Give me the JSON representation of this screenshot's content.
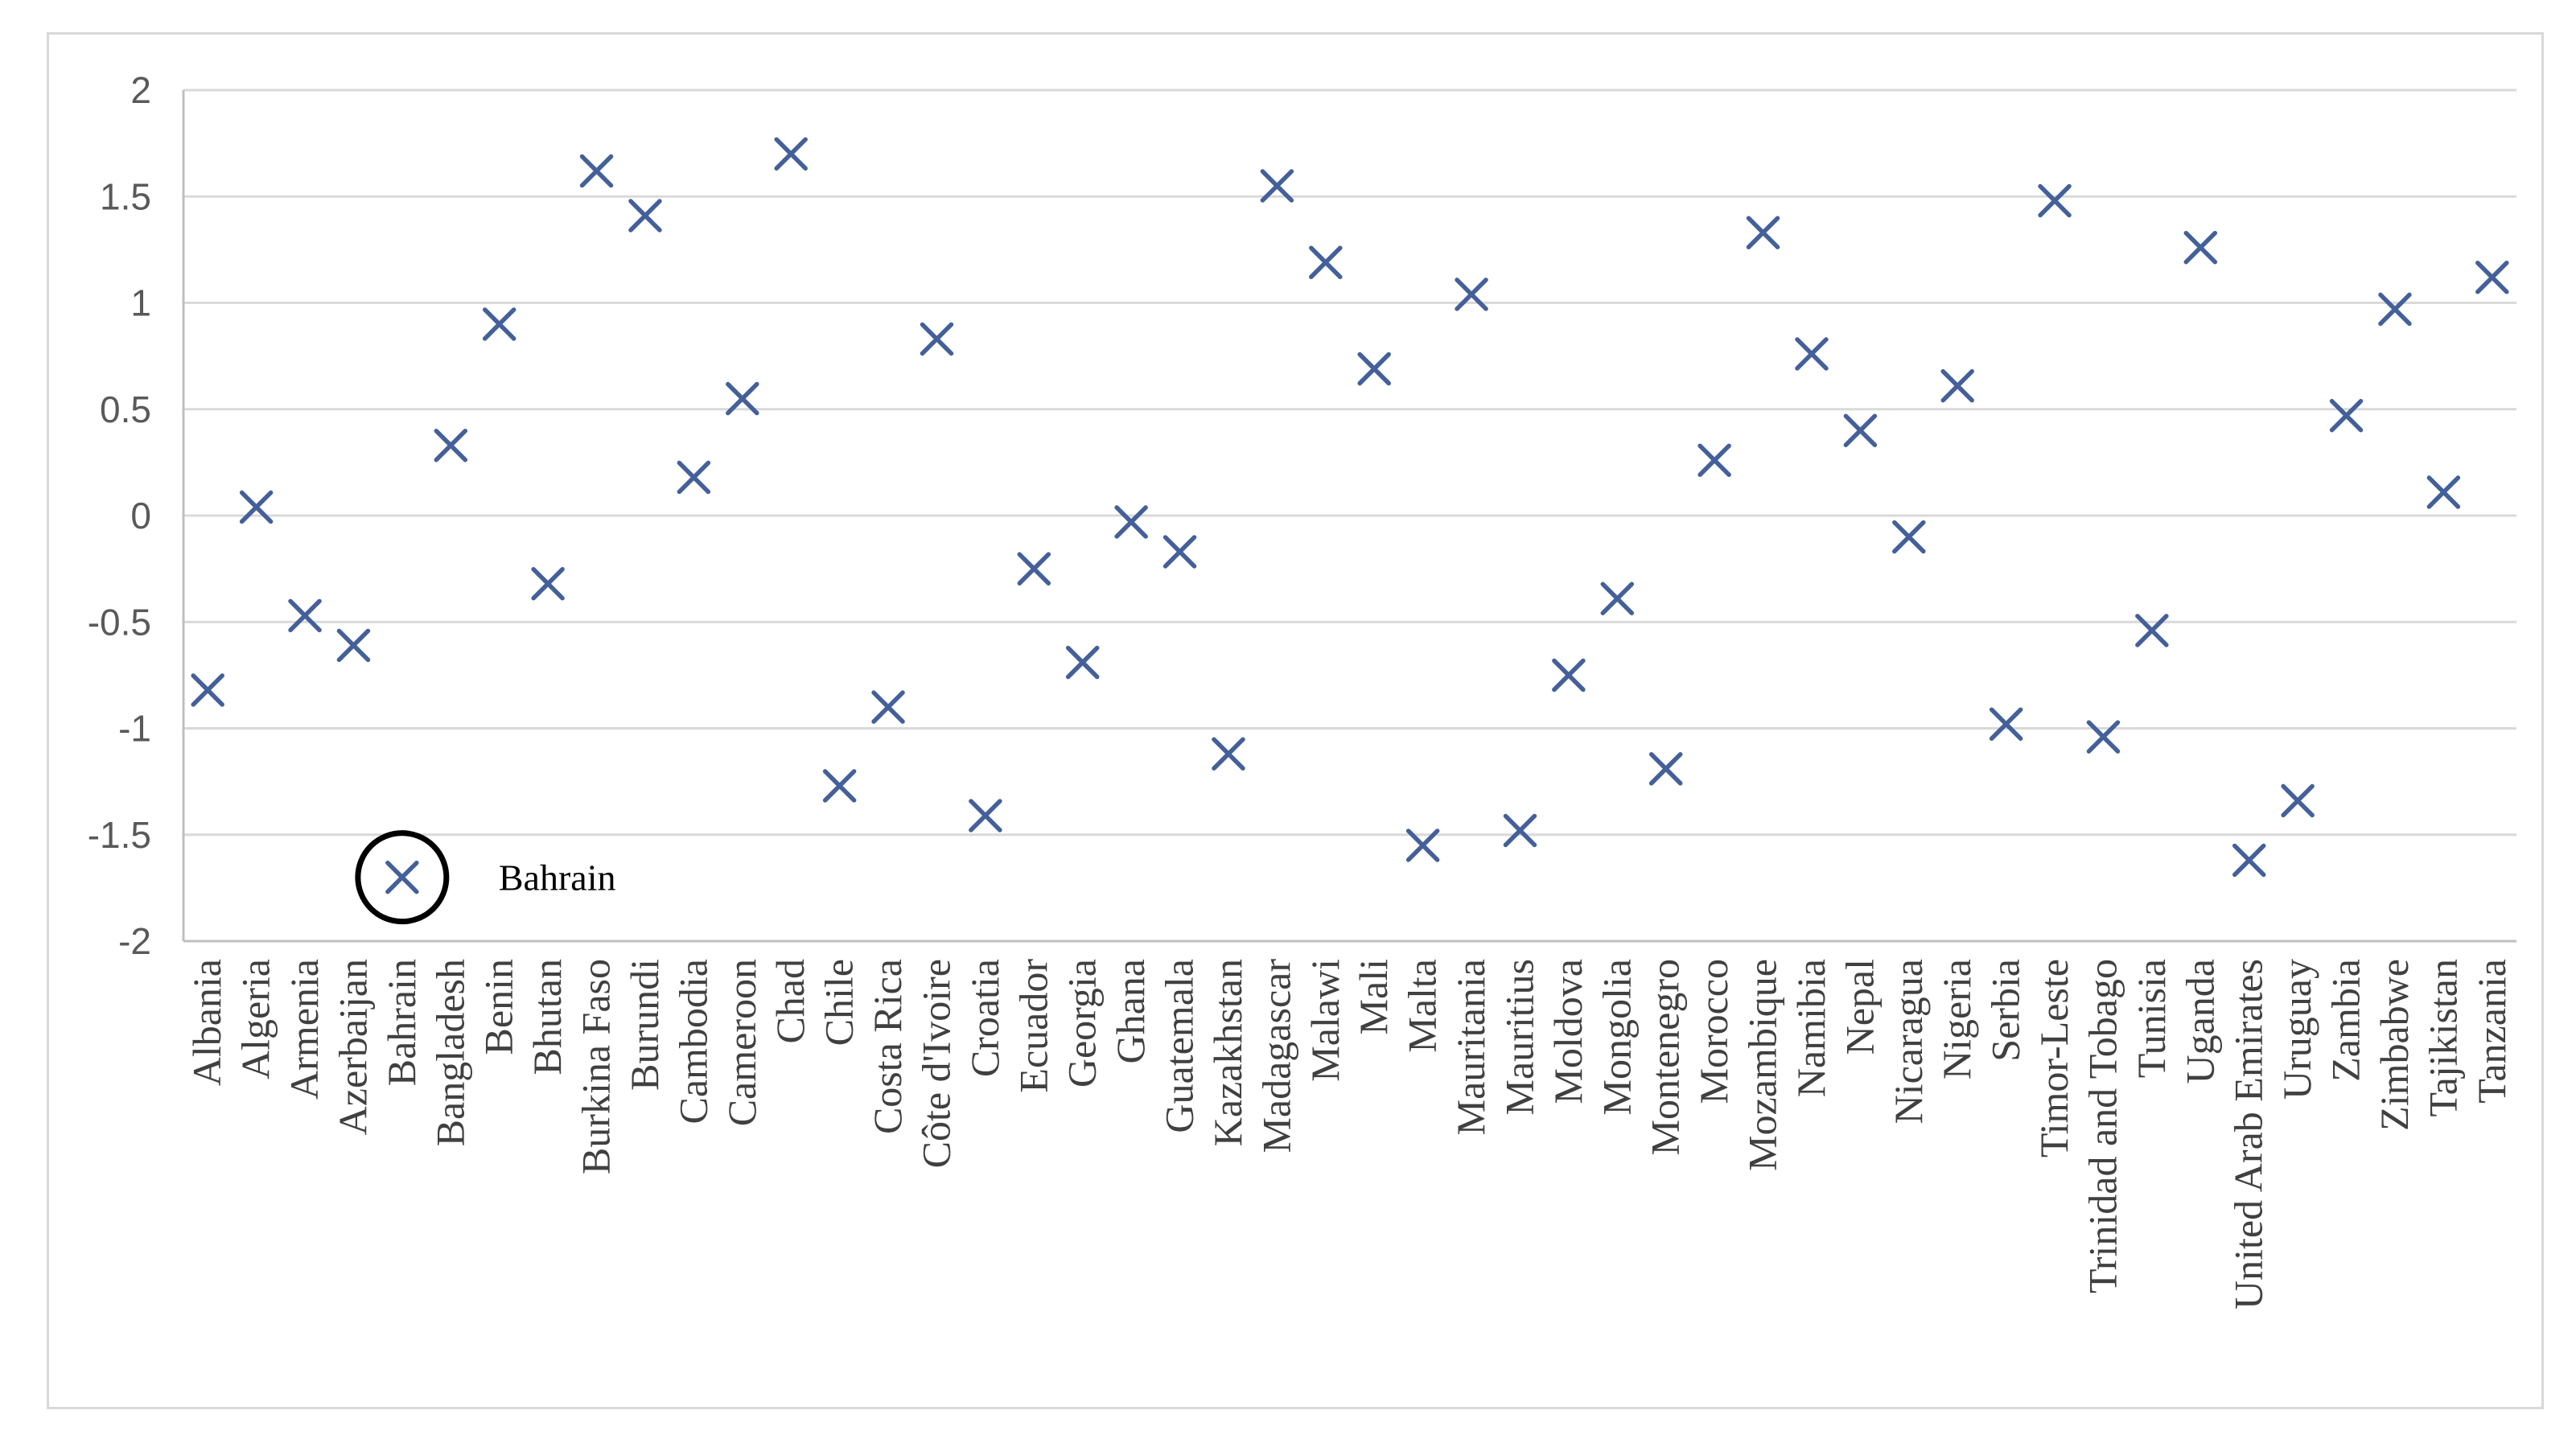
{
  "chart_data": {
    "type": "scatter",
    "title": "",
    "xlabel": "",
    "ylabel": "",
    "ylim": [
      -2,
      2
    ],
    "yticks": [
      "2",
      "1.5",
      "1",
      "0.5",
      "0",
      "-0.5",
      "-1",
      "-1.5",
      "-2"
    ],
    "grid": "horizontal",
    "marker": "x",
    "colors": {
      "marker": "#44609a",
      "grid": "#d9d9d9",
      "axis": "#bfbfbf",
      "circle": "#000000"
    },
    "categories": [
      "Albania",
      "Algeria",
      "Armenia",
      "Azerbaijan",
      "Bahrain",
      "Bangladesh",
      "Benin",
      "Bhutan",
      "Burkina Faso",
      "Burundi",
      "Cambodia",
      "Cameroon",
      "Chad",
      "Chile",
      "Costa Rica",
      "Côte d'Ivoire",
      "Croatia",
      "Ecuador",
      "Georgia",
      "Ghana",
      "Guatemala",
      "Kazakhstan",
      "Madagascar",
      "Malawi",
      "Mali",
      "Malta",
      "Mauritania",
      "Mauritius",
      "Moldova",
      "Mongolia",
      "Montenegro",
      "Morocco",
      "Mozambique",
      "Namibia",
      "Nepal",
      "Nicaragua",
      "Nigeria",
      "Serbia",
      "Timor-Leste",
      "Trinidad and Tobago",
      "Tunisia",
      "Uganda",
      "United Arab Emirates",
      "Uruguay",
      "Zambia",
      "Zimbabwe",
      "Tajikistan",
      "Tanzania"
    ],
    "values": [
      -0.82,
      0.04,
      -0.47,
      -0.61,
      -1.7,
      0.33,
      0.9,
      -0.32,
      1.62,
      1.41,
      0.18,
      0.55,
      1.7,
      -1.27,
      -0.9,
      0.83,
      -1.41,
      -0.25,
      -0.69,
      -0.03,
      -0.17,
      -1.12,
      1.55,
      1.19,
      0.69,
      -1.55,
      1.04,
      -1.48,
      -0.75,
      -0.39,
      -1.19,
      0.26,
      1.33,
      0.76,
      0.4,
      -0.1,
      0.61,
      -0.98,
      1.48,
      -1.04,
      -0.54,
      1.26,
      -1.62,
      -1.34,
      0.47,
      0.97,
      0.11,
      1.12
    ],
    "annotations": [
      {
        "text": "Bahrain",
        "category": "Bahrain",
        "value": -1.7,
        "style": "circle"
      }
    ]
  }
}
